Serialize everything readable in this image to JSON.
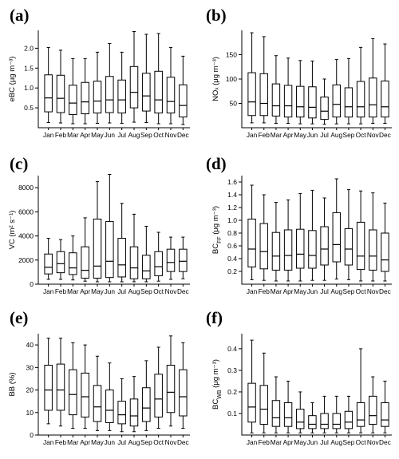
{
  "months": [
    "Jan",
    "Feb",
    "Mar",
    "Apr",
    "May",
    "Jun",
    "Jul",
    "Aug",
    "Sep",
    "Oct",
    "Nov",
    "Dec"
  ],
  "chart_data": [
    {
      "type": "box",
      "panel": "(a)",
      "ylabel": "eBC (μg m⁻³)",
      "ylim": [
        0,
        2.45
      ],
      "yticks": [
        0.5,
        1.0,
        1.5,
        2.0
      ],
      "tick_labels": [
        "0.5",
        "1.0",
        "1.5",
        "2.0"
      ],
      "boxes": [
        {
          "low": 0.13,
          "q1": 0.4,
          "median": 0.75,
          "q3": 1.33,
          "high": 2.02
        },
        {
          "low": 0.12,
          "q1": 0.38,
          "median": 0.74,
          "q3": 1.32,
          "high": 1.95
        },
        {
          "low": 0.1,
          "q1": 0.33,
          "median": 0.62,
          "q3": 1.07,
          "high": 1.74
        },
        {
          "low": 0.1,
          "q1": 0.35,
          "median": 0.65,
          "q3": 1.14,
          "high": 1.74
        },
        {
          "low": 0.11,
          "q1": 0.37,
          "median": 0.67,
          "q3": 1.17,
          "high": 1.9
        },
        {
          "low": 0.12,
          "q1": 0.38,
          "median": 0.7,
          "q3": 1.29,
          "high": 2.12
        },
        {
          "low": 0.11,
          "q1": 0.37,
          "median": 0.7,
          "q3": 1.2,
          "high": 1.9
        },
        {
          "low": 0.14,
          "q1": 0.5,
          "median": 0.89,
          "q3": 1.54,
          "high": 2.42
        },
        {
          "low": 0.13,
          "q1": 0.42,
          "median": 0.8,
          "q3": 1.37,
          "high": 2.35
        },
        {
          "low": 0.1,
          "q1": 0.37,
          "median": 0.7,
          "q3": 1.42,
          "high": 2.37
        },
        {
          "low": 0.1,
          "q1": 0.37,
          "median": 0.66,
          "q3": 1.27,
          "high": 2.02
        },
        {
          "low": 0.08,
          "q1": 0.27,
          "median": 0.56,
          "q3": 1.08,
          "high": 1.8
        }
      ]
    },
    {
      "type": "box",
      "panel": "(b)",
      "ylabel": "NOₓ (μg m⁻³)",
      "ylim": [
        0,
        200
      ],
      "yticks": [
        50,
        100,
        150
      ],
      "tick_labels": [
        "50",
        "100",
        "150"
      ],
      "boxes": [
        {
          "low": 10,
          "q1": 25,
          "median": 53,
          "q3": 113,
          "high": 195
        },
        {
          "low": 10,
          "q1": 25,
          "median": 50,
          "q3": 111,
          "high": 187
        },
        {
          "low": 9,
          "q1": 24,
          "median": 45,
          "q3": 90,
          "high": 148
        },
        {
          "low": 9,
          "q1": 22,
          "median": 45,
          "q3": 87,
          "high": 143
        },
        {
          "low": 8,
          "q1": 22,
          "median": 43,
          "q3": 85,
          "high": 138
        },
        {
          "low": 8,
          "q1": 20,
          "median": 42,
          "q3": 84,
          "high": 137
        },
        {
          "low": 7,
          "q1": 17,
          "median": 34,
          "q3": 63,
          "high": 100
        },
        {
          "low": 8,
          "q1": 22,
          "median": 48,
          "q3": 88,
          "high": 140
        },
        {
          "low": 8,
          "q1": 22,
          "median": 43,
          "q3": 82,
          "high": 142
        },
        {
          "low": 8,
          "q1": 22,
          "median": 43,
          "q3": 95,
          "high": 165
        },
        {
          "low": 9,
          "q1": 22,
          "median": 47,
          "q3": 102,
          "high": 183
        },
        {
          "low": 9,
          "q1": 22,
          "median": 43,
          "q3": 96,
          "high": 172
        }
      ]
    },
    {
      "type": "box",
      "panel": "(c)",
      "ylabel": "VC (m² s⁻¹)",
      "ylim": [
        0,
        9000
      ],
      "yticks": [
        0,
        2000,
        4000,
        6000,
        8000
      ],
      "tick_labels": [
        "0",
        "2000",
        "4000",
        "6000",
        "8000"
      ],
      "boxes": [
        {
          "low": 400,
          "q1": 850,
          "median": 1400,
          "q3": 2500,
          "high": 3800
        },
        {
          "low": 400,
          "q1": 950,
          "median": 1700,
          "q3": 2700,
          "high": 3700
        },
        {
          "low": 350,
          "q1": 800,
          "median": 1350,
          "q3": 2600,
          "high": 4000
        },
        {
          "low": 250,
          "q1": 500,
          "median": 1150,
          "q3": 3100,
          "high": 5500
        },
        {
          "low": 200,
          "q1": 500,
          "median": 1500,
          "q3": 5400,
          "high": 8500
        },
        {
          "low": 200,
          "q1": 550,
          "median": 1900,
          "q3": 5200,
          "high": 9100
        },
        {
          "low": 200,
          "q1": 600,
          "median": 1600,
          "q3": 3800,
          "high": 6700
        },
        {
          "low": 200,
          "q1": 450,
          "median": 1350,
          "q3": 3100,
          "high": 5800
        },
        {
          "low": 200,
          "q1": 450,
          "median": 1100,
          "q3": 2400,
          "high": 4800
        },
        {
          "low": 250,
          "q1": 700,
          "median": 1450,
          "q3": 2700,
          "high": 4300
        },
        {
          "low": 400,
          "q1": 1050,
          "median": 1800,
          "q3": 2900,
          "high": 3900
        },
        {
          "low": 450,
          "q1": 1050,
          "median": 1900,
          "q3": 2900,
          "high": 3900
        }
      ]
    },
    {
      "type": "box",
      "panel": "(d)",
      "ylabel": "BC_FF (μg m⁻³)",
      "ylim": [
        0,
        1.7
      ],
      "yticks": [
        0.2,
        0.4,
        0.6,
        0.8,
        1.0,
        1.2,
        1.4,
        1.6
      ],
      "tick_labels": [
        "0.2",
        "0.4",
        "0.6",
        "0.8",
        "1.0",
        "1.2",
        "1.4",
        "1.6"
      ],
      "boxes": [
        {
          "low": 0.07,
          "q1": 0.27,
          "median": 0.55,
          "q3": 1.02,
          "high": 1.55
        },
        {
          "low": 0.06,
          "q1": 0.24,
          "median": 0.51,
          "q3": 0.95,
          "high": 1.4
        },
        {
          "low": 0.05,
          "q1": 0.22,
          "median": 0.44,
          "q3": 0.81,
          "high": 1.28
        },
        {
          "low": 0.05,
          "q1": 0.22,
          "median": 0.45,
          "q3": 0.85,
          "high": 1.32
        },
        {
          "low": 0.05,
          "q1": 0.25,
          "median": 0.47,
          "q3": 0.86,
          "high": 1.42
        },
        {
          "low": 0.06,
          "q1": 0.25,
          "median": 0.45,
          "q3": 0.84,
          "high": 1.47
        },
        {
          "low": 0.06,
          "q1": 0.3,
          "median": 0.55,
          "q3": 0.9,
          "high": 1.35
        },
        {
          "low": 0.08,
          "q1": 0.35,
          "median": 0.62,
          "q3": 1.12,
          "high": 1.65
        },
        {
          "low": 0.07,
          "q1": 0.3,
          "median": 0.55,
          "q3": 0.87,
          "high": 1.48
        },
        {
          "low": 0.05,
          "q1": 0.23,
          "median": 0.44,
          "q3": 0.97,
          "high": 1.46
        },
        {
          "low": 0.05,
          "q1": 0.22,
          "median": 0.44,
          "q3": 0.85,
          "high": 1.43
        },
        {
          "low": 0.05,
          "q1": 0.2,
          "median": 0.38,
          "q3": 0.8,
          "high": 1.27
        }
      ]
    },
    {
      "type": "box",
      "panel": "(e)",
      "ylabel": "BB (%)",
      "ylim": [
        0,
        45
      ],
      "yticks": [
        0,
        10,
        20,
        30,
        40
      ],
      "tick_labels": [
        "0",
        "10",
        "20",
        "30",
        "40"
      ],
      "boxes": [
        {
          "low": 5,
          "q1": 11,
          "median": 20,
          "q3": 31,
          "high": 43
        },
        {
          "low": 4,
          "q1": 11,
          "median": 20,
          "q3": 31.5,
          "high": 43
        },
        {
          "low": 3,
          "q1": 9,
          "median": 18,
          "q3": 29,
          "high": 41
        },
        {
          "low": 3,
          "q1": 8,
          "median": 17,
          "q3": 27.5,
          "high": 40
        },
        {
          "low": 2,
          "q1": 6,
          "median": 12.5,
          "q3": 22,
          "high": 35
        },
        {
          "low": 2,
          "q1": 5.5,
          "median": 11,
          "q3": 20,
          "high": 32
        },
        {
          "low": 1.5,
          "q1": 5,
          "median": 9,
          "q3": 15,
          "high": 25
        },
        {
          "low": 1.5,
          "q1": 4,
          "median": 8.5,
          "q3": 16,
          "high": 26
        },
        {
          "low": 2,
          "q1": 6,
          "median": 12,
          "q3": 21,
          "high": 33
        },
        {
          "low": 3,
          "q1": 8,
          "median": 16,
          "q3": 27,
          "high": 39
        },
        {
          "low": 4,
          "q1": 10,
          "median": 19,
          "q3": 31,
          "high": 44
        },
        {
          "low": 3,
          "q1": 8.5,
          "median": 17,
          "q3": 29,
          "high": 41
        }
      ]
    },
    {
      "type": "box",
      "panel": "(f)",
      "ylabel": "BC_WB (μg m⁻³)",
      "ylim": [
        0,
        0.47
      ],
      "yticks": [
        0.1,
        0.2,
        0.3,
        0.4
      ],
      "tick_labels": [
        "0.1",
        "0.2",
        "0.3",
        "0.4"
      ],
      "boxes": [
        {
          "low": 0.01,
          "q1": 0.06,
          "median": 0.13,
          "q3": 0.24,
          "high": 0.44
        },
        {
          "low": 0.01,
          "q1": 0.05,
          "median": 0.12,
          "q3": 0.23,
          "high": 0.38
        },
        {
          "low": 0.01,
          "q1": 0.04,
          "median": 0.08,
          "q3": 0.16,
          "high": 0.27
        },
        {
          "low": 0.01,
          "q1": 0.04,
          "median": 0.08,
          "q3": 0.15,
          "high": 0.25
        },
        {
          "low": 0.01,
          "q1": 0.03,
          "median": 0.06,
          "q3": 0.12,
          "high": 0.2
        },
        {
          "low": 0.01,
          "q1": 0.03,
          "median": 0.05,
          "q3": 0.09,
          "high": 0.15
        },
        {
          "low": 0.01,
          "q1": 0.03,
          "median": 0.05,
          "q3": 0.1,
          "high": 0.18
        },
        {
          "low": 0.01,
          "q1": 0.03,
          "median": 0.05,
          "q3": 0.1,
          "high": 0.18
        },
        {
          "low": 0.01,
          "q1": 0.03,
          "median": 0.06,
          "q3": 0.11,
          "high": 0.18
        },
        {
          "low": 0.01,
          "q1": 0.04,
          "median": 0.07,
          "q3": 0.15,
          "high": 0.4
        },
        {
          "low": 0.01,
          "q1": 0.05,
          "median": 0.09,
          "q3": 0.18,
          "high": 0.27
        },
        {
          "low": 0.01,
          "q1": 0.04,
          "median": 0.07,
          "q3": 0.15,
          "high": 0.25
        }
      ]
    }
  ]
}
